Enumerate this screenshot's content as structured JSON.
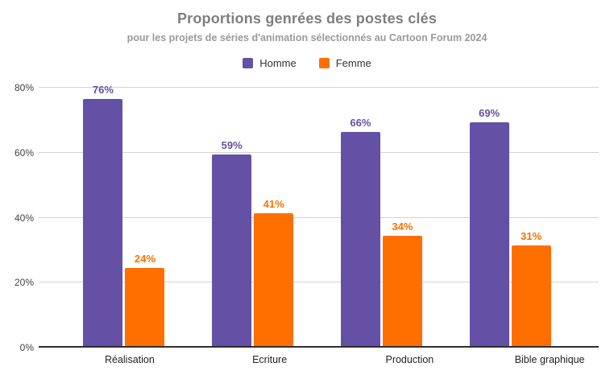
{
  "chart": {
    "title": "Proportions genrées des postes clés",
    "subtitle": "pour les projets de séries d'animation sélectionnés au Cartoon Forum 2024"
  },
  "chart_data": {
    "type": "bar",
    "title": "Proportions genrées des postes clés",
    "subtitle": "pour les projets de séries d'animation sélectionnés au Cartoon Forum 2024",
    "categories": [
      "Réalisation",
      "Ecriture",
      "Production",
      "Bible graphique"
    ],
    "series": [
      {
        "name": "Homme",
        "color": "#6450a5",
        "values": [
          76,
          59,
          66,
          69
        ]
      },
      {
        "name": "Femme",
        "color": "#ff6f00",
        "values": [
          24,
          41,
          34,
          31
        ]
      }
    ],
    "value_suffix": "%",
    "yticks": [
      0,
      20,
      40,
      60,
      80
    ],
    "ytick_labels": [
      "0%",
      "20%",
      "40%",
      "60%",
      "80%"
    ],
    "ylim": [
      0,
      83.5
    ],
    "grid": true,
    "legend_position": "top",
    "xlabel": "",
    "ylabel": ""
  },
  "colors": {
    "homme": "#6450a5",
    "femme": "#ff6f00",
    "title_gray": "#7e7e7e",
    "subtitle_gray": "#9a9a9a",
    "gridline": "#d2d2d6",
    "axis_line": "#2e2e2e",
    "background": "#ffffff"
  }
}
